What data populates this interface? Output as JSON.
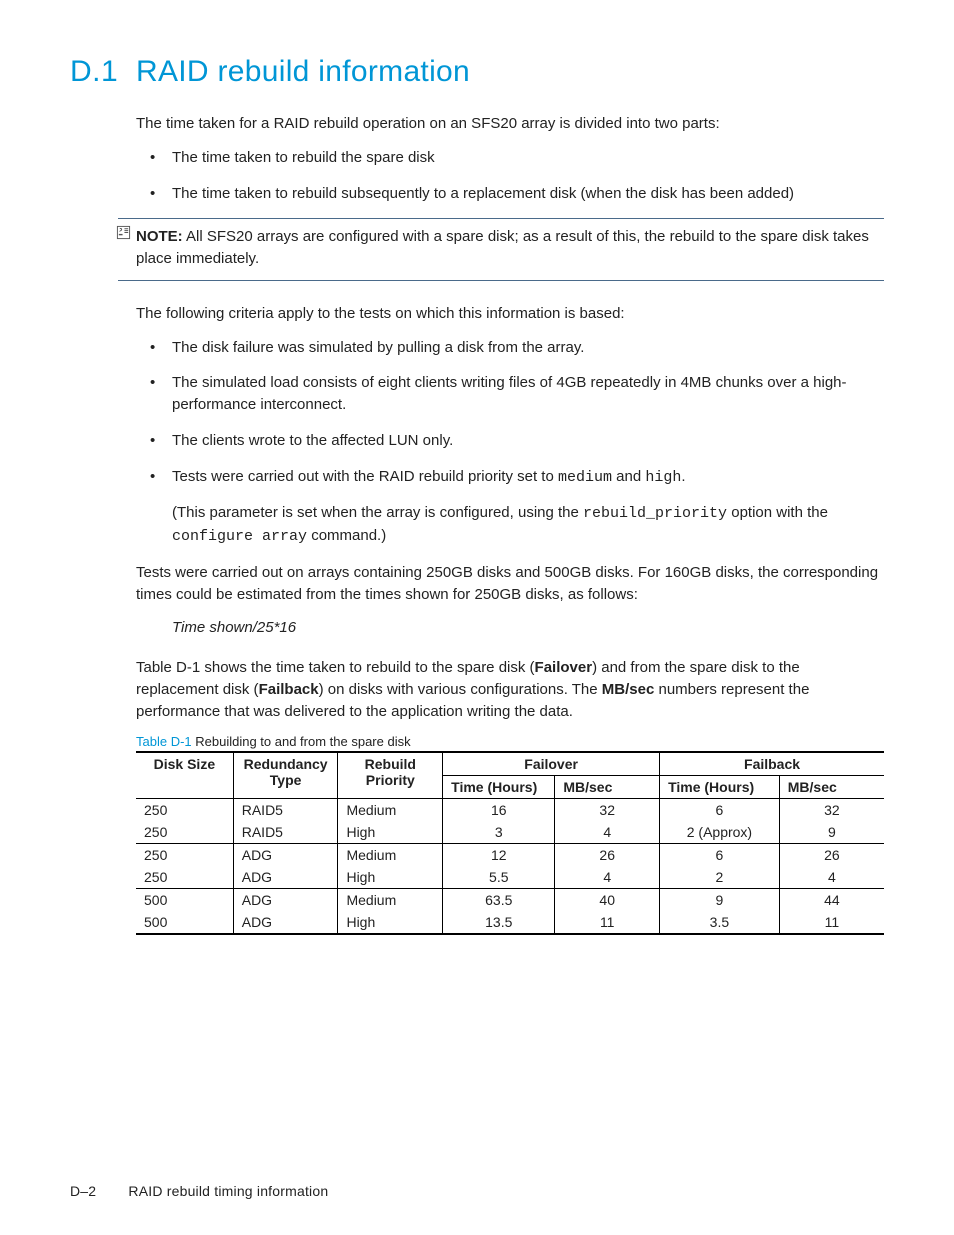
{
  "heading": {
    "number": "D.1",
    "title": "RAID rebuild information"
  },
  "intro": "The time taken for a RAID rebuild operation on an SFS20 array is divided into two parts:",
  "intro_bullets": [
    "The time taken to rebuild the spare disk",
    "The time taken to rebuild subsequently to a replacement disk (when the disk has been added)"
  ],
  "note": {
    "label": "NOTE:",
    "text": " All SFS20 arrays are configured with a spare disk; as a result of this, the rebuild to the spare disk takes place immediately."
  },
  "criteria_intro": "The following criteria apply to the tests on which this information is based:",
  "criteria": [
    {
      "text": "The disk failure was simulated by pulling a disk from the array."
    },
    {
      "text": "The simulated load consists of eight clients writing files of 4GB repeatedly in 4MB chunks over a high-performance interconnect."
    },
    {
      "text": "The clients wrote to the affected LUN only."
    },
    {
      "parts": {
        "pre": "Tests were carried out with the RAID rebuild priority set to ",
        "code1": "medium",
        "mid": " and ",
        "code2": "high",
        "post": "."
      }
    }
  ],
  "subpara": {
    "pre": "(This parameter is set when the array is configured, using the ",
    "code1": "rebuild_priority",
    "mid": " option with the ",
    "code2": "configure array",
    "post": " command.)"
  },
  "tests_note": "Tests were carried out on arrays containing 250GB disks and 500GB disks. For 160GB disks, the corresponding times could be estimated from the times shown for 250GB disks, as follows:",
  "formula": "Time shown/25*16",
  "table_intro": {
    "p1": "Table D-1 shows the time taken to rebuild to the spare disk (",
    "b1": "Failover",
    "p2": ") and from the spare disk to the replacement disk (",
    "b2": "Failback",
    "p3": ") on disks with various configurations. The ",
    "b3": "MB/sec",
    "p4": " numbers represent the performance that was delivered to the application writing the data."
  },
  "table": {
    "caption_label": "Table D-1",
    "caption_text": "  Rebuilding to and from the spare disk",
    "headers1": {
      "disk_size": "Disk Size",
      "redundancy": "Redundancy Type",
      "priority": "Rebuild Priority",
      "failover": "Failover",
      "failback": "Failback"
    },
    "headers2": {
      "time": "Time (Hours)",
      "mbsec": "MB/sec"
    },
    "rows": [
      {
        "disk": "250",
        "red": "RAID5",
        "pri": "Medium",
        "fo_t": "16",
        "fo_mb": "32",
        "fb_t": "6",
        "fb_mb": "32",
        "sep": false
      },
      {
        "disk": "250",
        "red": "RAID5",
        "pri": "High",
        "fo_t": "3",
        "fo_mb": "4",
        "fb_t": "2 (Approx)",
        "fb_mb": "9",
        "sep": false
      },
      {
        "disk": "250",
        "red": "ADG",
        "pri": "Medium",
        "fo_t": "12",
        "fo_mb": "26",
        "fb_t": "6",
        "fb_mb": "26",
        "sep": true
      },
      {
        "disk": "250",
        "red": "ADG",
        "pri": "High",
        "fo_t": "5.5",
        "fo_mb": "4",
        "fb_t": "2",
        "fb_mb": "4",
        "sep": false
      },
      {
        "disk": "500",
        "red": "ADG",
        "pri": "Medium",
        "fo_t": "63.5",
        "fo_mb": "40",
        "fb_t": "9",
        "fb_mb": "44",
        "sep": true
      },
      {
        "disk": "500",
        "red": "ADG",
        "pri": "High",
        "fo_t": "13.5",
        "fo_mb": "11",
        "fb_t": "3.5",
        "fb_mb": "11",
        "sep": false
      }
    ],
    "col_widths": [
      "13%",
      "14%",
      "14%",
      "15%",
      "14%",
      "16%",
      "14%"
    ]
  },
  "footer": {
    "page": "D–2",
    "title": "RAID rebuild timing information"
  },
  "colors": {
    "accent": "#0096d6",
    "rule": "#4a6a8a",
    "text": "#222222",
    "background": "#ffffff"
  }
}
